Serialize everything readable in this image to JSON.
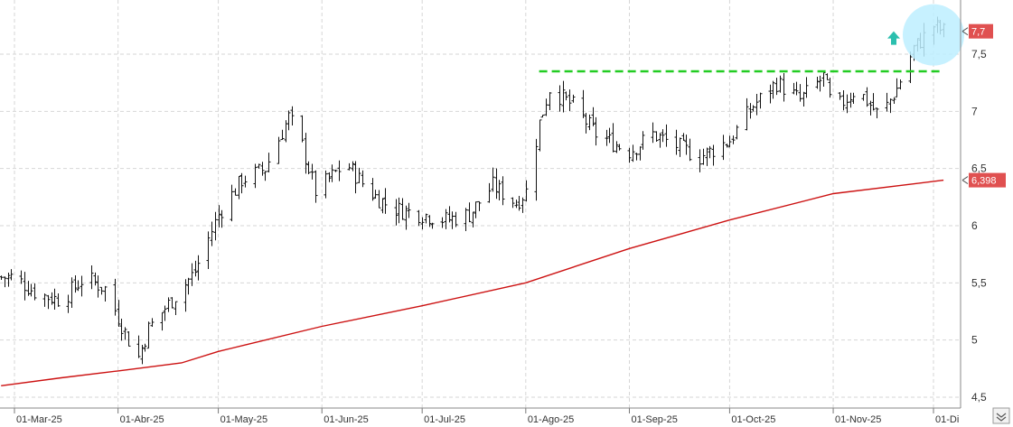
{
  "chart_data": {
    "type": "line",
    "subtype": "ohlc-bars",
    "grid": true,
    "ylim": [
      4.4,
      7.85
    ],
    "y_ticks": [
      "7,5",
      "7",
      "6,5",
      "6",
      "5,5",
      "5",
      "4,5"
    ],
    "y_tick_values": [
      7.5,
      7.0,
      6.5,
      6.0,
      5.5,
      5.0,
      4.5
    ],
    "x_ticks": [
      "01-Mar-25",
      "01-Abr-25",
      "01-May-25",
      "01-Jun-25",
      "01-Jul-25",
      "01-Ago-25",
      "01-Sep-25",
      "01-Oct-25",
      "01-Nov-25",
      "01-Di"
    ],
    "x_tick_dates": [
      "2025-03-01",
      "2025-04-01",
      "2025-05-01",
      "2025-06-01",
      "2025-07-01",
      "2025-08-01",
      "2025-09-01",
      "2025-10-01",
      "2025-11-01",
      "2025-12-01"
    ],
    "price_series_close": [
      [
        "2025-02-25",
        5.55
      ],
      [
        "2025-03-01",
        5.55
      ],
      [
        "2025-03-08",
        5.4
      ],
      [
        "2025-03-15",
        5.35
      ],
      [
        "2025-03-22",
        5.55
      ],
      [
        "2025-03-28",
        5.45
      ],
      [
        "2025-04-01",
        5.2
      ],
      [
        "2025-04-04",
        5.0
      ],
      [
        "2025-04-07",
        4.85
      ],
      [
        "2025-04-10",
        5.1
      ],
      [
        "2025-04-17",
        5.35
      ],
      [
        "2025-04-24",
        5.6
      ],
      [
        "2025-05-01",
        6.1
      ],
      [
        "2025-05-08",
        6.4
      ],
      [
        "2025-05-15",
        6.5
      ],
      [
        "2025-05-22",
        6.95
      ],
      [
        "2025-05-25",
        6.8
      ],
      [
        "2025-05-30",
        6.3
      ],
      [
        "2025-06-01",
        6.35
      ],
      [
        "2025-06-08",
        6.55
      ],
      [
        "2025-06-15",
        6.3
      ],
      [
        "2025-06-22",
        6.15
      ],
      [
        "2025-07-01",
        6.1
      ],
      [
        "2025-07-08",
        6.05
      ],
      [
        "2025-07-15",
        6.1
      ],
      [
        "2025-07-22",
        6.35
      ],
      [
        "2025-07-29",
        6.2
      ],
      [
        "2025-08-01",
        6.3
      ],
      [
        "2025-08-05",
        6.9
      ],
      [
        "2025-08-08",
        7.2
      ],
      [
        "2025-08-15",
        7.05
      ],
      [
        "2025-08-22",
        6.8
      ],
      [
        "2025-09-01",
        6.65
      ],
      [
        "2025-09-08",
        6.8
      ],
      [
        "2025-09-15",
        6.7
      ],
      [
        "2025-09-22",
        6.6
      ],
      [
        "2025-10-01",
        6.75
      ],
      [
        "2025-10-08",
        7.05
      ],
      [
        "2025-10-15",
        7.25
      ],
      [
        "2025-10-22",
        7.1
      ],
      [
        "2025-10-29",
        7.3
      ],
      [
        "2025-11-01",
        7.0
      ],
      [
        "2025-11-08",
        7.2
      ],
      [
        "2025-11-15",
        6.95
      ],
      [
        "2025-11-20",
        7.2
      ],
      [
        "2025-11-25",
        7.55
      ],
      [
        "2025-12-01",
        7.75
      ],
      [
        "2025-12-04",
        7.7
      ]
    ],
    "moving_average_series": [
      [
        "2025-02-25",
        4.6
      ],
      [
        "2025-03-15",
        4.67
      ],
      [
        "2025-04-01",
        4.73
      ],
      [
        "2025-04-20",
        4.8
      ],
      [
        "2025-05-01",
        4.9
      ],
      [
        "2025-06-01",
        5.12
      ],
      [
        "2025-07-01",
        5.3
      ],
      [
        "2025-08-01",
        5.5
      ],
      [
        "2025-09-01",
        5.8
      ],
      [
        "2025-10-01",
        6.05
      ],
      [
        "2025-11-01",
        6.28
      ],
      [
        "2025-12-04",
        6.398
      ]
    ],
    "resistance_level": 7.35,
    "resistance_from": "2025-08-05",
    "last_price_label": "7,7",
    "last_price_value": 7.7,
    "ma_label": "6,398",
    "ma_value": 6.398,
    "colors": {
      "bars": "#111111",
      "moving_average": "#cc1111",
      "resistance": "#22cc22",
      "price_badge": "#e05050",
      "ma_badge": "#e05050",
      "highlight_circle": "#bdefff",
      "arrow": "#2bbfae"
    },
    "icons": {
      "breakout_arrow": "up-arrow-icon",
      "corner_button": "collapse-icon"
    }
  }
}
